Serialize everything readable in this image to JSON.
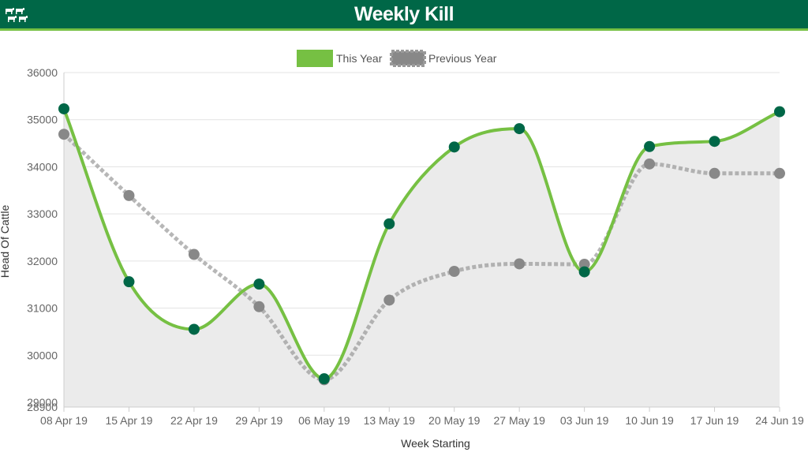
{
  "header": {
    "title": "Weekly Kill",
    "logo_icon": "cattle-herd-icon"
  },
  "colors": {
    "header_bg": "#006747",
    "this_year_line": "#76c043",
    "this_year_marker": "#006747",
    "previous_year": "#999999",
    "previous_year_marker": "#888888",
    "area_fill": "#ebebeb"
  },
  "chart_data": {
    "type": "line",
    "xlabel": "Week Starting",
    "ylabel": "Head Of Cattle",
    "categories": [
      "08 Apr 19",
      "15 Apr 19",
      "22 Apr 19",
      "29 Apr 19",
      "06 May 19",
      "13 May 19",
      "20 May 19",
      "27 May 19",
      "03 Jun 19",
      "10 Jun 19",
      "17 Jun 19",
      "24 Jun 19"
    ],
    "yticks": [
      "29000",
      "30000",
      "31000",
      "32000",
      "33000",
      "34000",
      "35000",
      "36000"
    ],
    "extra_ytick_overlap": "28900",
    "ylim": [
      28900,
      36000
    ],
    "legend_position": "top-center",
    "grid": true,
    "series": [
      {
        "name": "This Year",
        "style": "solid",
        "values": [
          35230,
          31560,
          30550,
          31510,
          29500,
          32790,
          34420,
          34810,
          31770,
          34430,
          34540,
          35170
        ]
      },
      {
        "name": "Previous Year",
        "style": "dotted",
        "values": [
          34690,
          33390,
          32140,
          31030,
          29480,
          31170,
          31780,
          31940,
          31930,
          34060,
          33860,
          33860
        ]
      }
    ]
  }
}
